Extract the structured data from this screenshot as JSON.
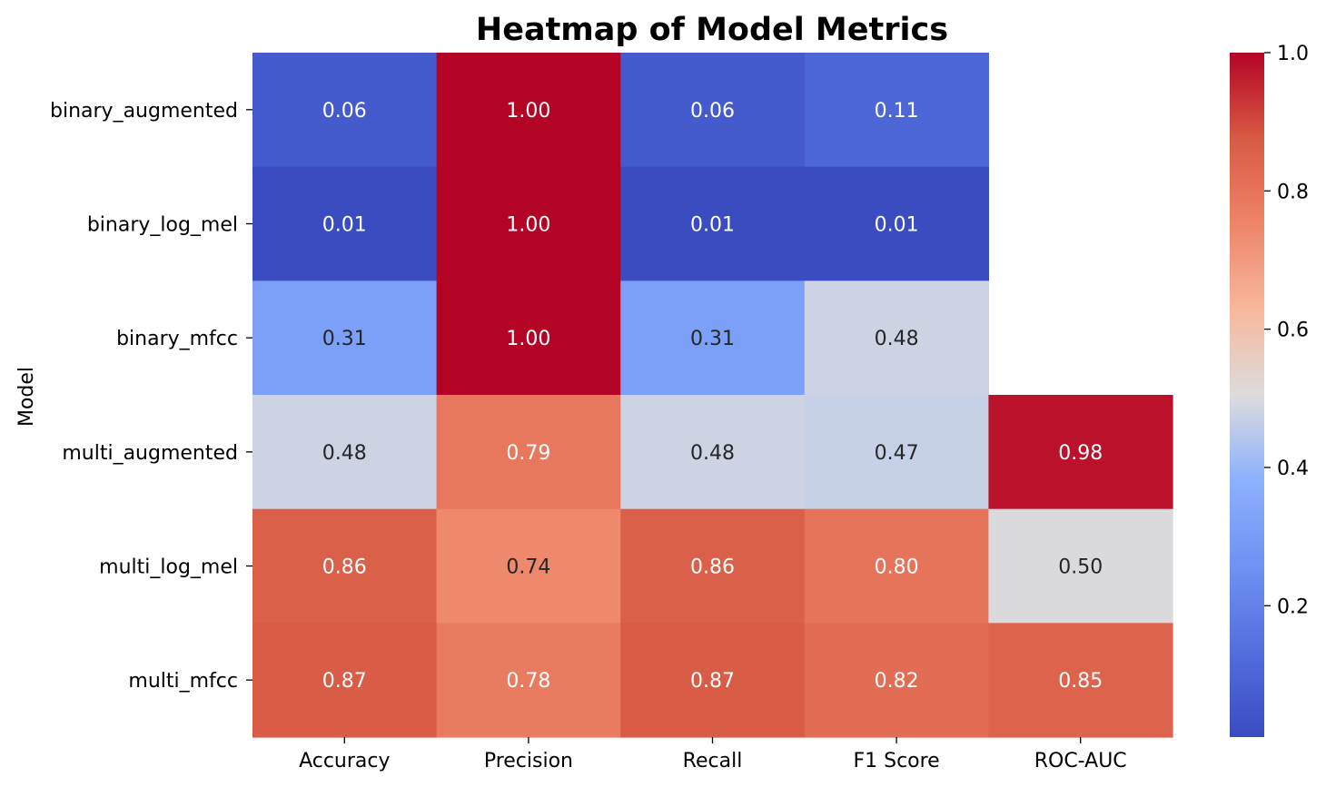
{
  "chart_data": {
    "type": "heatmap",
    "title": "Heatmap of Model Metrics",
    "xlabel": "",
    "ylabel": "Model",
    "columns": [
      "Accuracy",
      "Precision",
      "Recall",
      "F1 Score",
      "ROC-AUC"
    ],
    "rows": [
      "binary_augmented",
      "binary_log_mel",
      "binary_mfcc",
      "multi_augmented",
      "multi_log_mel",
      "multi_mfcc"
    ],
    "values": [
      [
        0.06,
        1.0,
        0.06,
        0.11,
        null
      ],
      [
        0.01,
        1.0,
        0.01,
        0.01,
        null
      ],
      [
        0.31,
        1.0,
        0.31,
        0.48,
        null
      ],
      [
        0.48,
        0.79,
        0.48,
        0.47,
        0.98
      ],
      [
        0.86,
        0.74,
        0.86,
        0.8,
        0.5
      ],
      [
        0.87,
        0.78,
        0.87,
        0.82,
        0.85
      ]
    ],
    "value_format": "0.00",
    "colormap": "coolwarm",
    "vmin": 0.01,
    "vmax": 1.0,
    "colorbar": {
      "ticks": [
        0.2,
        0.4,
        0.6,
        0.8,
        1.0
      ],
      "tick_labels": [
        "0.2",
        "0.4",
        "0.6",
        "0.8",
        "1.0"
      ],
      "placement": "right"
    }
  }
}
